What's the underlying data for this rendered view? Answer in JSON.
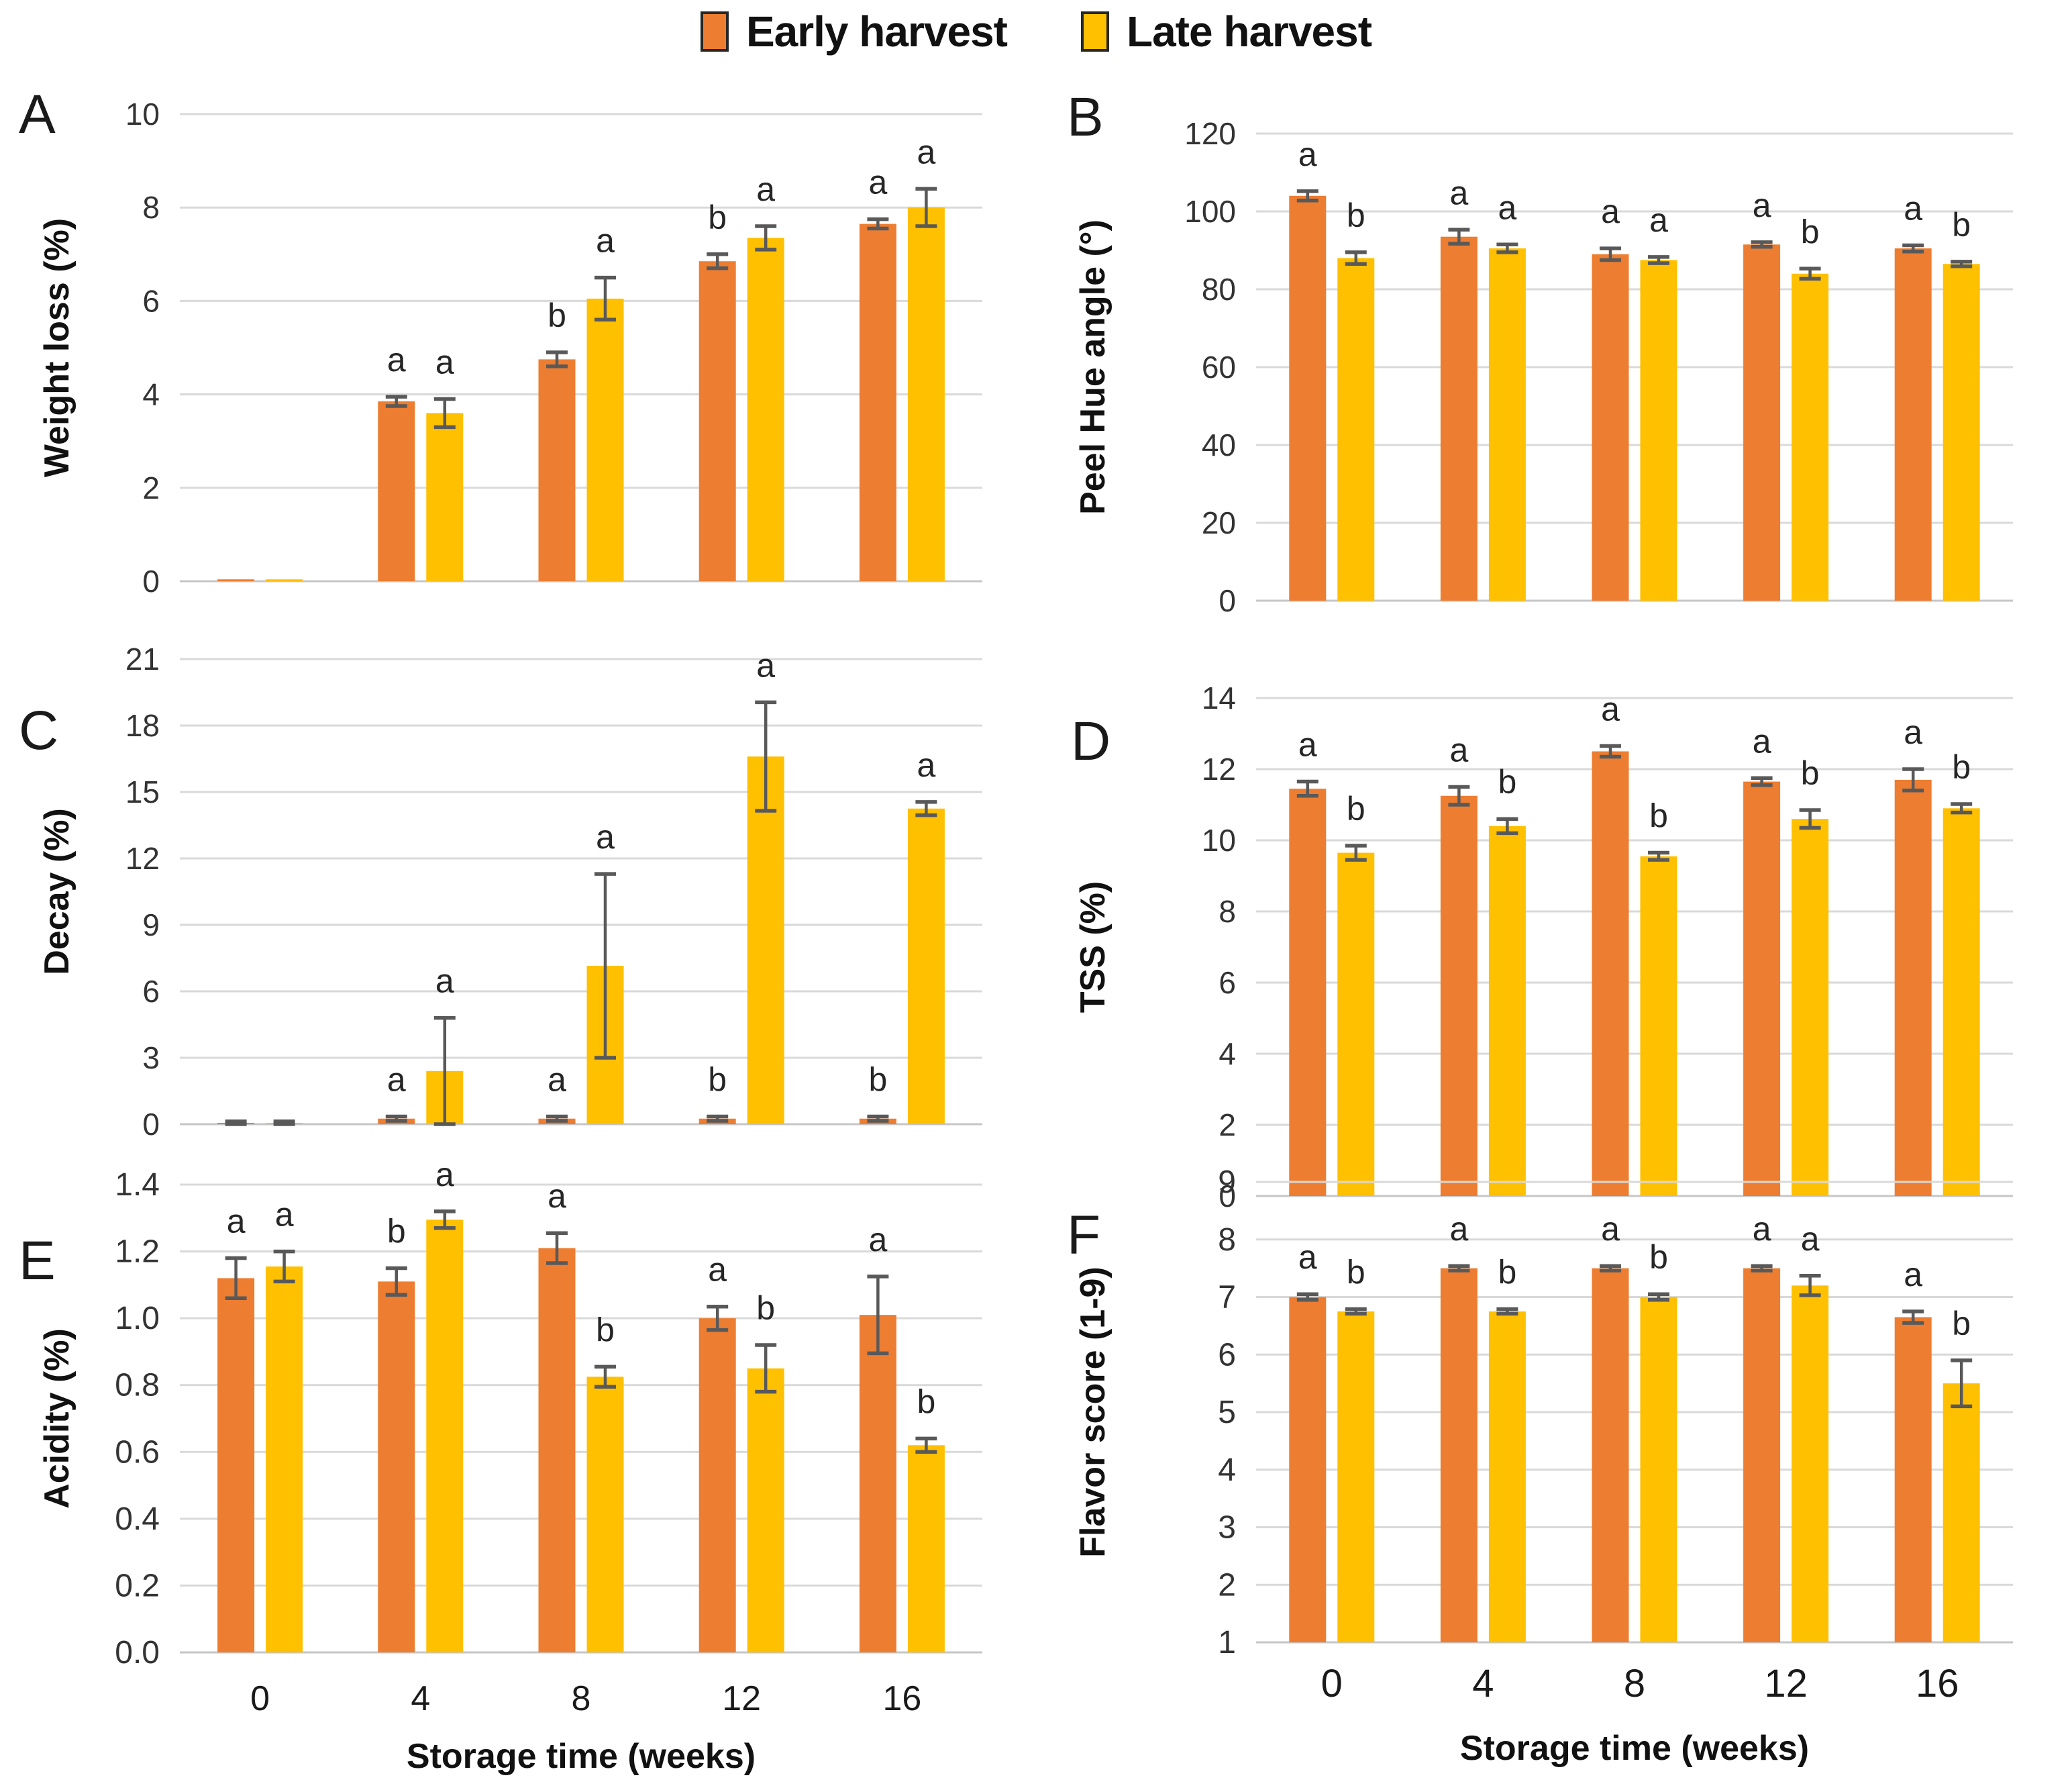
{
  "legend": {
    "items": [
      {
        "label": "Early harvest",
        "color": "#ED7D31"
      },
      {
        "label": "Late harvest",
        "color": "#FFC000"
      }
    ]
  },
  "x_axis": {
    "title": "Storage time (weeks)",
    "categories": [
      "0",
      "4",
      "8",
      "12",
      "16"
    ]
  },
  "colors": {
    "early": "#ED7D31",
    "late": "#FFC000",
    "error_bar": "#595959",
    "gridline": "#D9D9D9",
    "axis_line": "#C6C6C6",
    "tick_text": "#333333",
    "letter_text": "#262626",
    "title_text": "#111111"
  },
  "chart_data": [
    {
      "panel": "A",
      "type": "bar",
      "ylabel": "Weight loss (%)",
      "ylim": [
        0,
        10
      ],
      "ystep": 2,
      "tick_decimals": 0,
      "show_x_labels": false,
      "categories": [
        "0",
        "4",
        "8",
        "12",
        "16"
      ],
      "series": [
        {
          "name": "Early harvest",
          "key": "early",
          "values": [
            0.04,
            3.85,
            4.75,
            6.85,
            7.65
          ],
          "errors": [
            0,
            0.1,
            0.15,
            0.15,
            0.1
          ],
          "letters": [
            "",
            "a",
            "b",
            "b",
            "a"
          ]
        },
        {
          "name": "Late harvest",
          "key": "late",
          "values": [
            0.04,
            3.6,
            6.05,
            7.35,
            8.0
          ],
          "errors": [
            0,
            0.3,
            0.45,
            0.25,
            0.4
          ],
          "letters": [
            "",
            "a",
            "a",
            "a",
            "a"
          ]
        }
      ]
    },
    {
      "panel": "B",
      "type": "bar",
      "ylabel": "Peel Hue angle (°)",
      "ylim": [
        0,
        120
      ],
      "ystep": 20,
      "tick_decimals": 0,
      "show_x_labels": false,
      "categories": [
        "0",
        "4",
        "8",
        "12",
        "16"
      ],
      "series": [
        {
          "name": "Early harvest",
          "key": "early",
          "values": [
            104,
            93.5,
            89,
            91.5,
            90.5
          ],
          "errors": [
            1.2,
            1.8,
            1.5,
            0.6,
            0.8
          ],
          "letters": [
            "a",
            "a",
            "a",
            "a",
            "a"
          ]
        },
        {
          "name": "Late harvest",
          "key": "late",
          "values": [
            88,
            90.5,
            87.5,
            84,
            86.5
          ],
          "errors": [
            1.5,
            1.0,
            0.8,
            1.3,
            0.6
          ],
          "letters": [
            "b",
            "a",
            "a",
            "b",
            "b"
          ]
        }
      ]
    },
    {
      "panel": "C",
      "type": "bar",
      "ylabel": "Decay (%)",
      "ylim": [
        0,
        21
      ],
      "ystep": 3,
      "tick_decimals": 0,
      "show_x_labels": false,
      "categories": [
        "0",
        "4",
        "8",
        "12",
        "16"
      ],
      "series": [
        {
          "name": "Early harvest",
          "key": "early",
          "values": [
            0.05,
            0.25,
            0.25,
            0.25,
            0.25
          ],
          "errors": [
            0.08,
            0.1,
            0.1,
            0.1,
            0.1
          ],
          "letters": [
            "",
            "a",
            "a",
            "b",
            "b"
          ]
        },
        {
          "name": "Late harvest",
          "key": "late",
          "values": [
            0.05,
            2.4,
            7.15,
            16.6,
            14.25
          ],
          "errors": [
            0.08,
            2.4,
            4.15,
            2.45,
            0.3
          ],
          "letters": [
            "",
            "a",
            "a",
            "a",
            "a"
          ]
        }
      ]
    },
    {
      "panel": "D",
      "type": "bar",
      "ylabel": "TSS (%)",
      "ylim": [
        0,
        14
      ],
      "ystep": 2,
      "tick_decimals": 0,
      "show_x_labels": false,
      "categories": [
        "0",
        "4",
        "8",
        "12",
        "16"
      ],
      "series": [
        {
          "name": "Early harvest",
          "key": "early",
          "values": [
            11.45,
            11.25,
            12.5,
            11.65,
            11.7
          ],
          "errors": [
            0.2,
            0.25,
            0.15,
            0.1,
            0.3
          ],
          "letters": [
            "a",
            "a",
            "a",
            "a",
            "a"
          ]
        },
        {
          "name": "Late harvest",
          "key": "late",
          "values": [
            9.65,
            10.4,
            9.55,
            10.6,
            10.9
          ],
          "errors": [
            0.2,
            0.2,
            0.1,
            0.25,
            0.12
          ],
          "letters": [
            "b",
            "b",
            "b",
            "b",
            "b"
          ]
        }
      ]
    },
    {
      "panel": "E",
      "type": "bar",
      "ylabel": "Acidity (%)",
      "ylim": [
        0,
        1.4
      ],
      "ystep": 0.2,
      "tick_decimals": 1,
      "show_x_labels": true,
      "categories": [
        "0",
        "4",
        "8",
        "12",
        "16"
      ],
      "series": [
        {
          "name": "Early harvest",
          "key": "early",
          "values": [
            1.12,
            1.11,
            1.21,
            1.0,
            1.01
          ],
          "errors": [
            0.06,
            0.04,
            0.045,
            0.035,
            0.115
          ],
          "letters": [
            "a",
            "b",
            "a",
            "a",
            "a"
          ]
        },
        {
          "name": "Late harvest",
          "key": "late",
          "values": [
            1.155,
            1.295,
            0.825,
            0.85,
            0.62
          ],
          "errors": [
            0.045,
            0.025,
            0.03,
            0.07,
            0.02
          ],
          "letters": [
            "a",
            "a",
            "b",
            "b",
            "b"
          ]
        }
      ]
    },
    {
      "panel": "F",
      "type": "bar",
      "ylabel": "Flavor score (1-9)",
      "ylim": [
        1,
        9
      ],
      "ystep": 1,
      "tick_decimals": 0,
      "show_x_labels": true,
      "categories": [
        "0",
        "4",
        "8",
        "12",
        "16"
      ],
      "series": [
        {
          "name": "Early harvest",
          "key": "early",
          "values": [
            7.0,
            7.5,
            7.5,
            7.5,
            6.65
          ],
          "errors": [
            0.05,
            0.04,
            0.04,
            0.04,
            0.1
          ],
          "letters": [
            "a",
            "a",
            "a",
            "a",
            "a"
          ]
        },
        {
          "name": "Late harvest",
          "key": "late",
          "values": [
            6.75,
            6.75,
            7.0,
            7.2,
            5.5
          ],
          "errors": [
            0.04,
            0.04,
            0.05,
            0.17,
            0.4
          ],
          "letters": [
            "b",
            "b",
            "b",
            "a",
            "b"
          ]
        }
      ]
    }
  ]
}
